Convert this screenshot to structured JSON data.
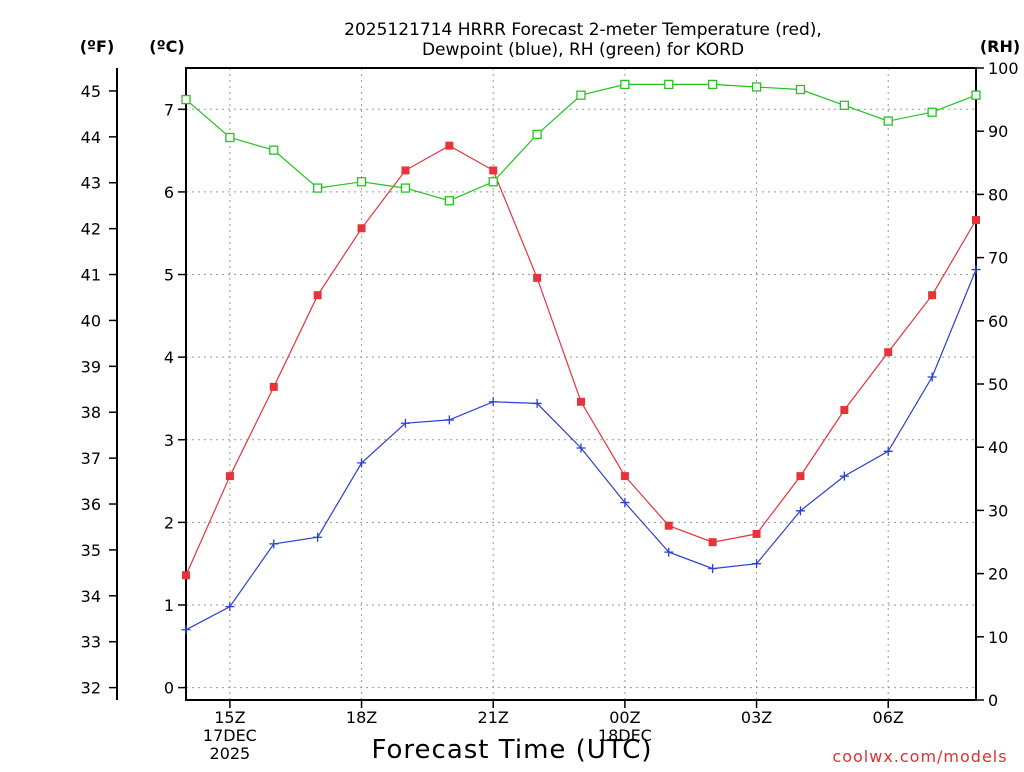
{
  "chart_data": {
    "type": "line",
    "title_lines": [
      "2025121714 HRRR Forecast 2-meter Temperature (red),",
      "Dewpoint (blue), RH (green) for KORD"
    ],
    "xlabel": "Forecast Time (UTC)",
    "credit": "coolwx.com/models",
    "left_outer_axis": {
      "label": "(ºF)",
      "min": 31.73,
      "max": 45.5,
      "ticks": [
        32,
        33,
        34,
        35,
        36,
        37,
        38,
        39,
        40,
        41,
        42,
        43,
        44,
        45
      ]
    },
    "left_inner_axis": {
      "label": "(ºC)",
      "min": -0.15,
      "max": 7.5,
      "ticks": [
        0,
        1,
        2,
        3,
        4,
        5,
        6,
        7
      ]
    },
    "right_axis": {
      "label": "(RH)",
      "min": 0,
      "max": 100,
      "ticks": [
        0,
        10,
        20,
        30,
        40,
        50,
        60,
        70,
        80,
        90,
        100
      ]
    },
    "x_range": [
      14,
      32
    ],
    "x_ticks": [
      {
        "x": 15,
        "lines": [
          "15Z",
          "17DEC",
          "2025"
        ]
      },
      {
        "x": 18,
        "lines": [
          "18Z"
        ]
      },
      {
        "x": 21,
        "lines": [
          "21Z"
        ]
      },
      {
        "x": 24,
        "lines": [
          "00Z",
          "18DEC"
        ]
      },
      {
        "x": 27,
        "lines": [
          "03Z"
        ]
      },
      {
        "x": 30,
        "lines": [
          "06Z"
        ]
      }
    ],
    "series": [
      {
        "name": "2-meter Temperature",
        "color": "#e8333a",
        "axis": "celsius",
        "marker": "filled-square",
        "x": [
          14,
          15,
          16,
          17,
          18,
          19,
          20,
          21,
          22,
          23,
          24,
          25,
          26,
          27,
          28,
          29,
          30,
          31,
          32
        ],
        "values": [
          1.36,
          2.56,
          3.64,
          4.75,
          5.56,
          6.26,
          6.56,
          6.26,
          4.96,
          3.46,
          2.56,
          1.96,
          1.76,
          1.86,
          2.56,
          3.36,
          4.06,
          4.75,
          5.66
        ]
      },
      {
        "name": "Dewpoint",
        "color": "#2a3fd6",
        "axis": "celsius",
        "marker": "plus",
        "x": [
          14,
          15,
          16,
          17,
          18,
          19,
          20,
          21,
          22,
          23,
          24,
          25,
          26,
          27,
          28,
          29,
          30,
          31,
          32
        ],
        "values": [
          0.7,
          0.98,
          1.74,
          1.82,
          2.72,
          3.2,
          3.24,
          3.46,
          3.44,
          2.9,
          2.24,
          1.64,
          1.44,
          1.5,
          2.14,
          2.56,
          2.86,
          3.76,
          5.06
        ]
      },
      {
        "name": "RH",
        "color": "#22c41e",
        "axis": "rh",
        "marker": "open-square",
        "x": [
          14,
          15,
          16,
          17,
          18,
          19,
          20,
          21,
          22,
          23,
          24,
          25,
          26,
          27,
          28,
          29,
          30,
          31,
          32
        ],
        "values": [
          95,
          89,
          87,
          81,
          82,
          81,
          79,
          82,
          89.5,
          95.7,
          97.4,
          97.4,
          97.4,
          97,
          96.6,
          94.1,
          91.6,
          93,
          95.7
        ]
      }
    ],
    "grid": true
  }
}
